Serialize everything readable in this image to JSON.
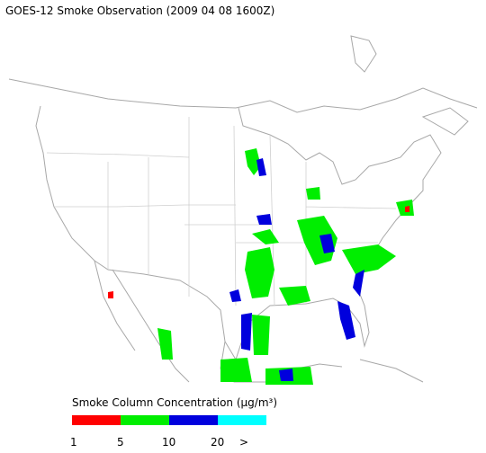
{
  "title": "GOES-12 Smoke Observation (2009 04 08  1600Z)",
  "legend": {
    "title": "Smoke Column Concentration (μg/m³)",
    "colors": [
      "#ff0000",
      "#00ee00",
      "#0000dd",
      "#00ffff"
    ],
    "labels": [
      "1",
      "5",
      "10",
      "20",
      ">"
    ]
  }
}
